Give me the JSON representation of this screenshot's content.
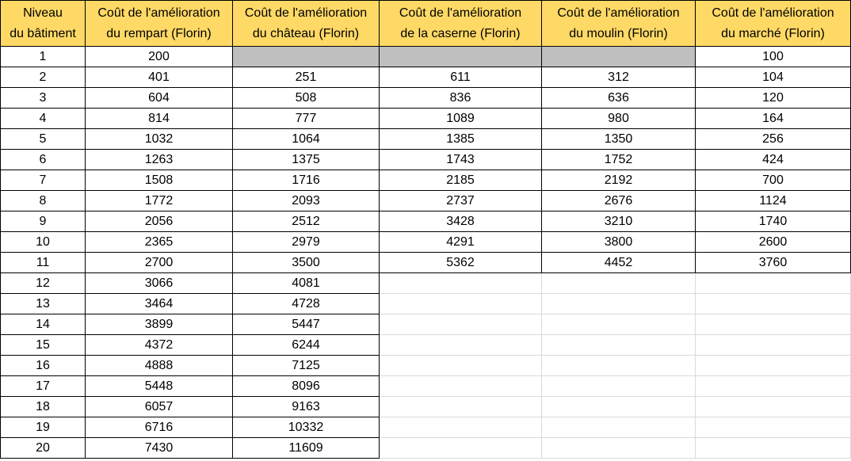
{
  "colors": {
    "header_fill": "#FFD966",
    "missing_fill": "#BFBFBF",
    "border": "#000000",
    "gridline": "#DADADA"
  },
  "headers": [
    {
      "line1": "Niveau",
      "line2": "du bâtiment"
    },
    {
      "line1": "Coût de l'amélioration",
      "line2": "du rempart (Florin)"
    },
    {
      "line1": "Coût de l'amélioration",
      "line2": "du château (Florin)"
    },
    {
      "line1": "Coût de l'amélioration",
      "line2": "de la caserne (Florin)"
    },
    {
      "line1": "Coût de l'amélioration",
      "line2": "du moulin (Florin)"
    },
    {
      "line1": "Coût de l'amélioration",
      "line2": "du marché (Florin)"
    }
  ],
  "rows": [
    [
      "1",
      "200",
      "",
      "",
      "",
      "100"
    ],
    [
      "2",
      "401",
      "251",
      "611",
      "312",
      "104"
    ],
    [
      "3",
      "604",
      "508",
      "836",
      "636",
      "120"
    ],
    [
      "4",
      "814",
      "777",
      "1089",
      "980",
      "164"
    ],
    [
      "5",
      "1032",
      "1064",
      "1385",
      "1350",
      "256"
    ],
    [
      "6",
      "1263",
      "1375",
      "1743",
      "1752",
      "424"
    ],
    [
      "7",
      "1508",
      "1716",
      "2185",
      "2192",
      "700"
    ],
    [
      "8",
      "1772",
      "2093",
      "2737",
      "2676",
      "1124"
    ],
    [
      "9",
      "2056",
      "2512",
      "3428",
      "3210",
      "1740"
    ],
    [
      "10",
      "2365",
      "2979",
      "4291",
      "3800",
      "2600"
    ],
    [
      "11",
      "2700",
      "3500",
      "5362",
      "4452",
      "3760"
    ],
    [
      "12",
      "3066",
      "4081",
      "",
      "",
      ""
    ],
    [
      "13",
      "3464",
      "4728",
      "",
      "",
      ""
    ],
    [
      "14",
      "3899",
      "5447",
      "",
      "",
      ""
    ],
    [
      "15",
      "4372",
      "6244",
      "",
      "",
      ""
    ],
    [
      "16",
      "4888",
      "7125",
      "",
      "",
      ""
    ],
    [
      "17",
      "5448",
      "8096",
      "",
      "",
      ""
    ],
    [
      "18",
      "6057",
      "9163",
      "",
      "",
      ""
    ],
    [
      "19",
      "6716",
      "10332",
      "",
      "",
      ""
    ],
    [
      "20",
      "7430",
      "11609",
      "",
      "",
      ""
    ]
  ]
}
